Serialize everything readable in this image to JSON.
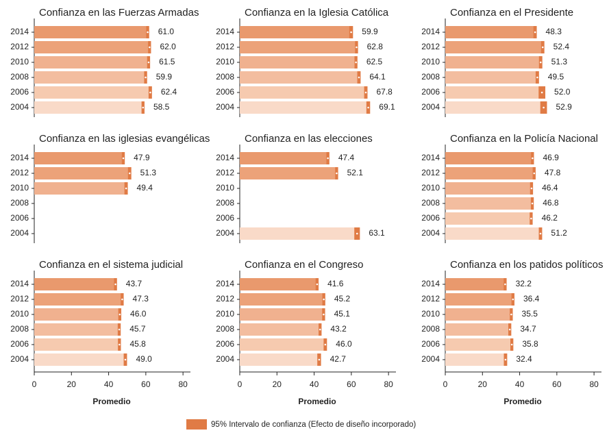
{
  "chart_data": [
    {
      "type": "bar",
      "title": "Confianza en las Fuerzas Armadas",
      "categories": [
        "2014",
        "2012",
        "2010",
        "2008",
        "2006",
        "2004"
      ],
      "values": [
        61.0,
        62.0,
        61.5,
        59.9,
        62.4,
        58.5
      ],
      "value_labels": [
        "61.0",
        "62.0",
        "61.5",
        "59.9",
        "62.4",
        "58.5"
      ],
      "errors": [
        0.8,
        0.8,
        0.8,
        0.8,
        0.9,
        0.8
      ],
      "xlim": [
        0,
        84
      ]
    },
    {
      "type": "bar",
      "title": "Confianza en la Iglesia Católica",
      "categories": [
        "2014",
        "2012",
        "2010",
        "2008",
        "2006",
        "2004"
      ],
      "values": [
        59.9,
        62.8,
        62.5,
        64.1,
        67.8,
        69.1
      ],
      "value_labels": [
        "59.9",
        "62.8",
        "62.5",
        "64.1",
        "67.8",
        "69.1"
      ],
      "errors": [
        1.0,
        0.8,
        0.8,
        0.9,
        0.9,
        1.0
      ],
      "xlim": [
        0,
        84
      ]
    },
    {
      "type": "bar",
      "title": "Confianza en el Presidente",
      "categories": [
        "2014",
        "2012",
        "2010",
        "2008",
        "2006",
        "2004"
      ],
      "values": [
        48.3,
        52.4,
        51.3,
        49.5,
        52.0,
        52.9
      ],
      "value_labels": [
        "48.3",
        "52.4",
        "51.3",
        "49.5",
        "52.0",
        "52.9"
      ],
      "errors": [
        0.9,
        0.9,
        0.9,
        0.9,
        1.8,
        1.8
      ],
      "xlim": [
        0,
        84
      ]
    },
    {
      "type": "bar",
      "title": "Confianza en las iglesias evangélicas",
      "categories": [
        "2014",
        "2012",
        "2010",
        "2008",
        "2006",
        "2004"
      ],
      "values": [
        47.9,
        51.3,
        49.4,
        null,
        null,
        null
      ],
      "value_labels": [
        "47.9",
        "51.3",
        "49.4",
        null,
        null,
        null
      ],
      "errors": [
        0.8,
        0.9,
        0.9,
        null,
        null,
        null
      ],
      "xlim": [
        0,
        84
      ]
    },
    {
      "type": "bar",
      "title": "Confianza en las elecciones",
      "categories": [
        "2014",
        "2012",
        "2010",
        "2008",
        "2006",
        "2004"
      ],
      "values": [
        47.4,
        52.1,
        null,
        null,
        null,
        63.1
      ],
      "value_labels": [
        "47.4",
        "52.1",
        null,
        null,
        null,
        "63.1"
      ],
      "errors": [
        0.8,
        0.8,
        null,
        null,
        null,
        1.5
      ],
      "xlim": [
        0,
        84
      ]
    },
    {
      "type": "bar",
      "title": "Confianza en la Policía Nacional",
      "categories": [
        "2014",
        "2012",
        "2010",
        "2008",
        "2006",
        "2004"
      ],
      "values": [
        46.9,
        47.8,
        46.4,
        46.8,
        46.2,
        51.2
      ],
      "value_labels": [
        "46.9",
        "47.8",
        "46.4",
        "46.8",
        "46.2",
        "51.2"
      ],
      "errors": [
        0.8,
        0.8,
        0.8,
        0.8,
        0.8,
        0.9
      ],
      "xlim": [
        0,
        84
      ]
    },
    {
      "type": "bar",
      "title": "Confianza en el sistema judicial",
      "categories": [
        "2014",
        "2012",
        "2010",
        "2008",
        "2006",
        "2004"
      ],
      "values": [
        43.7,
        47.3,
        46.0,
        45.7,
        45.8,
        49.0
      ],
      "value_labels": [
        "43.7",
        "47.3",
        "46.0",
        "45.7",
        "45.8",
        "49.0"
      ],
      "errors": [
        0.8,
        0.8,
        0.8,
        0.8,
        0.8,
        0.9
      ],
      "xlim": [
        0,
        84
      ],
      "xticks": [
        0,
        20,
        40,
        60,
        80
      ],
      "xlabel": "Promedio"
    },
    {
      "type": "bar",
      "title": "Confianza en el Congreso",
      "categories": [
        "2014",
        "2012",
        "2010",
        "2008",
        "2006",
        "2004"
      ],
      "values": [
        41.6,
        45.2,
        45.1,
        43.2,
        46.0,
        42.7
      ],
      "value_labels": [
        "41.6",
        "45.2",
        "45.1",
        "43.2",
        "46.0",
        "42.7"
      ],
      "errors": [
        0.8,
        0.8,
        0.8,
        0.8,
        0.9,
        1.0
      ],
      "xlim": [
        0,
        84
      ],
      "xticks": [
        0,
        20,
        40,
        60,
        80
      ],
      "xlabel": "Promedio"
    },
    {
      "type": "bar",
      "title": "Confianza en los patidos políticos",
      "categories": [
        "2014",
        "2012",
        "2010",
        "2008",
        "2006",
        "2004"
      ],
      "values": [
        32.2,
        36.4,
        35.5,
        34.7,
        35.8,
        32.4
      ],
      "value_labels": [
        "32.2",
        "36.4",
        "35.5",
        "34.7",
        "35.8",
        "32.4"
      ],
      "errors": [
        0.8,
        0.8,
        0.8,
        0.8,
        0.8,
        0.9
      ],
      "xlim": [
        0,
        84
      ],
      "xticks": [
        0,
        20,
        40,
        60,
        80
      ],
      "xlabel": "Promedio"
    }
  ],
  "colors": [
    "#e9996d",
    "#eca279",
    "#f0b18f",
    "#f3bd9f",
    "#f6caaf",
    "#f9dac8"
  ],
  "ci_color": "#e07b45",
  "legend": {
    "label": "95% Intervalo de confianza (Efecto de diseño incorporado)"
  }
}
